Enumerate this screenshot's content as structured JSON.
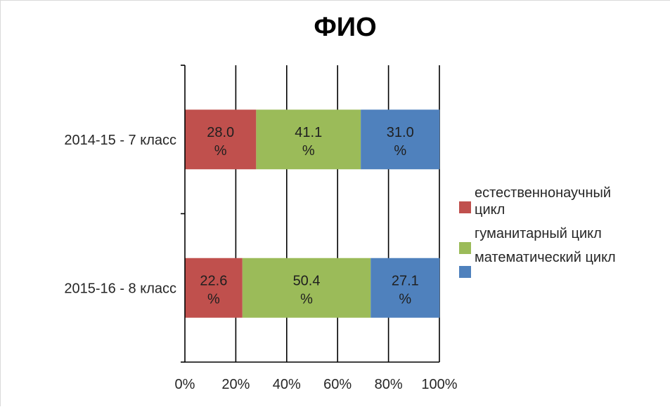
{
  "chart_data": {
    "type": "bar",
    "orientation": "horizontal",
    "stacked": "percent",
    "title": "ФИО",
    "categories": [
      "2014-15 - 7 класс",
      "2015-16 - 8 класс"
    ],
    "series": [
      {
        "name": "естественнонаучный цикл",
        "name_lines": [
          "естественнонаучный",
          "цикл"
        ],
        "color": "#c0504d",
        "values": [
          28.0,
          22.6
        ],
        "label_lines": [
          [
            "28.0",
            "%"
          ],
          [
            "22.6",
            "%"
          ]
        ]
      },
      {
        "name": "гуманитарный цикл",
        "name_lines": [
          "гуманитарный цикл"
        ],
        "color": "#9bbb59",
        "values": [
          41.1,
          50.4
        ],
        "label_lines": [
          [
            "41.1",
            "%"
          ],
          [
            "50.4",
            "%"
          ]
        ]
      },
      {
        "name": "математический цикл",
        "name_lines": [
          "математический цикл"
        ],
        "color": "#4f81bd",
        "values": [
          31.0,
          27.1
        ],
        "label_lines": [
          [
            "31.0",
            "%"
          ],
          [
            "27.1",
            "%"
          ]
        ]
      }
    ],
    "x_ticks": [
      "0%",
      "20%",
      "40%",
      "60%",
      "80%",
      "100%"
    ],
    "xlim": [
      0,
      100
    ],
    "xlabel": "",
    "ylabel": "",
    "grid": "vertical",
    "legend_position": "right"
  }
}
